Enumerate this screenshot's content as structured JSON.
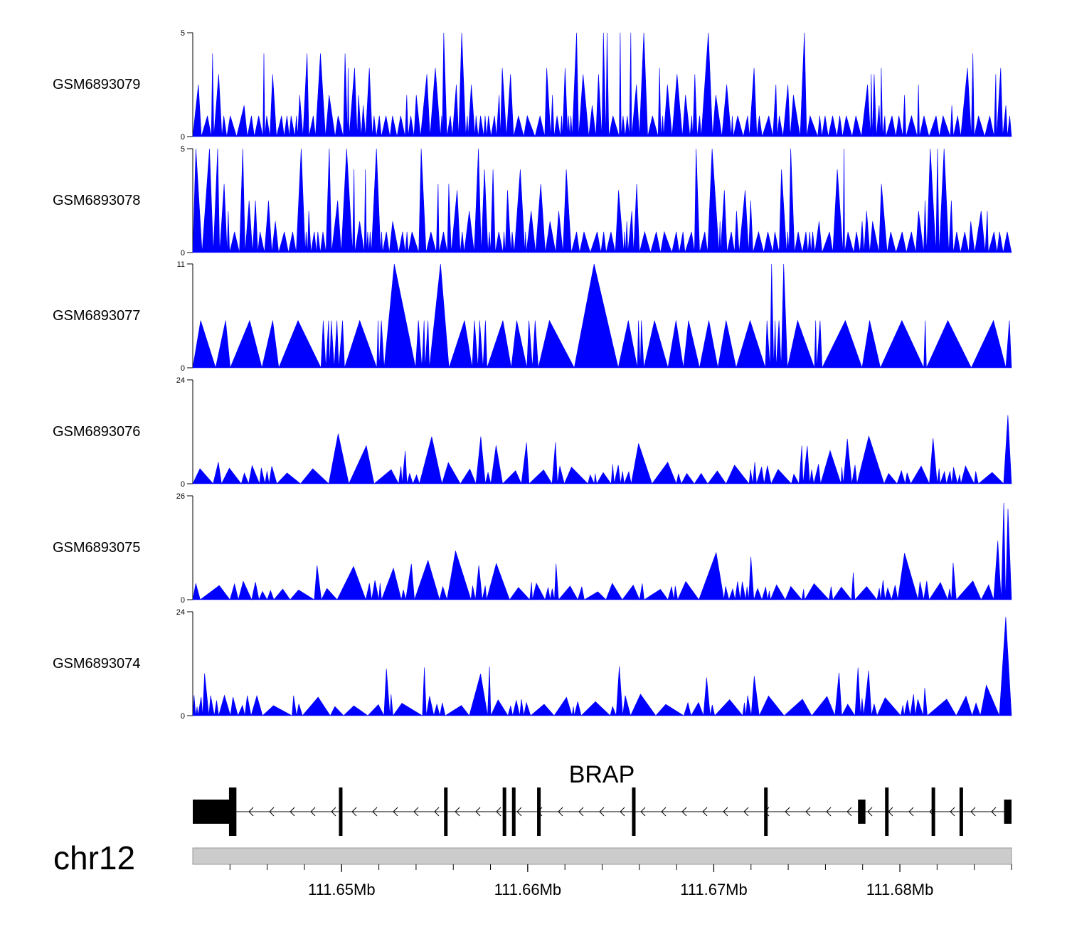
{
  "chart_data": {
    "type": "area",
    "title": "",
    "colors": {
      "signal": "#0000ff",
      "gene": "#000000",
      "ideogram": "#cccccc"
    },
    "xlim": [
      111642000,
      111686000
    ],
    "x_unit": "bp",
    "tracks": [
      {
        "name": "GSM6893079",
        "ymin_label": "0",
        "ymax_label": "5",
        "ymax": 5
      },
      {
        "name": "GSM6893078",
        "ymin_label": "0",
        "ymax_label": "5",
        "ymax": 5
      },
      {
        "name": "GSM6893077",
        "ymin_label": "0",
        "ymax_label": "11",
        "ymax": 11
      },
      {
        "name": "GSM6893076",
        "ymin_label": "0",
        "ymax_label": "24",
        "ymax": 24
      },
      {
        "name": "GSM6893075",
        "ymin_label": "0",
        "ymax_label": "26",
        "ymax": 26
      },
      {
        "name": "GSM6893074",
        "ymin_label": "0",
        "ymax_label": "24",
        "ymax": 24
      }
    ],
    "gene": {
      "name": "BRAP",
      "strand": "-",
      "start": 111642000,
      "end": 111686000,
      "utr_blocks": [
        [
          111642000,
          111644100
        ],
        [
          111677750,
          111678150
        ],
        [
          111685600,
          111686000
        ]
      ],
      "exons": [
        111644250,
        111649950,
        111655600,
        111658750,
        111659250,
        111660600,
        111665700,
        111672800,
        111679300,
        111681800,
        111683300
      ]
    },
    "chromosome": "chr12",
    "x_ticks": [
      {
        "pos": 111650000,
        "label": "111.65Mb"
      },
      {
        "pos": 111660000,
        "label": "111.66Mb"
      },
      {
        "pos": 111670000,
        "label": "111.67Mb"
      },
      {
        "pos": 111680000,
        "label": "111.68Mb"
      }
    ],
    "minor_tick_step": 2000
  }
}
